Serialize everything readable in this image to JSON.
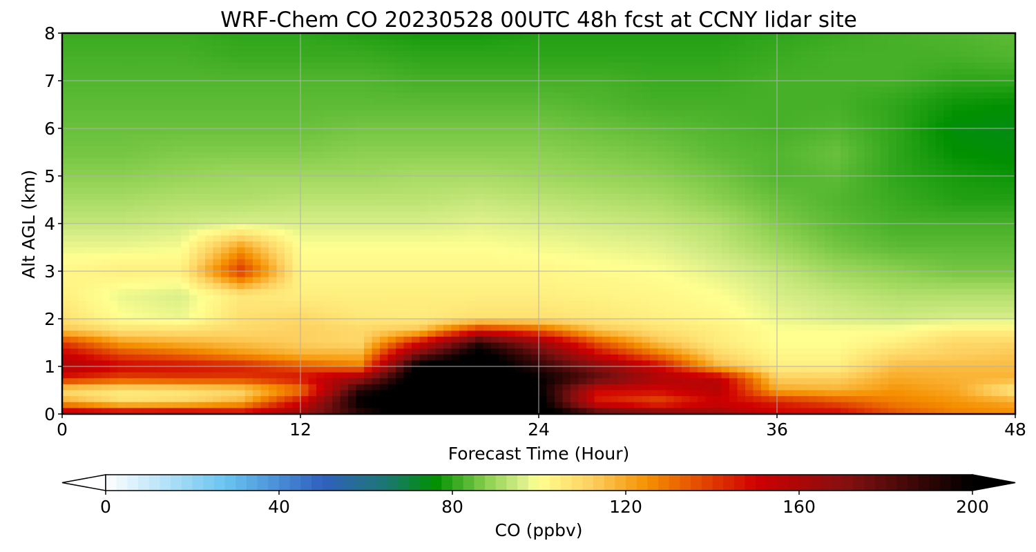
{
  "chart_data": {
    "type": "heatmap",
    "title": "WRF-Chem CO  20230528 00UTC 48h fcst at CCNY lidar site",
    "xlabel": "Forecast Time (Hour)",
    "ylabel": "Alt AGL (km)",
    "xlim": [
      0,
      48
    ],
    "ylim": [
      0,
      8
    ],
    "xticks": [
      0,
      12,
      24,
      36,
      48
    ],
    "yticks": [
      0,
      1,
      2,
      3,
      4,
      5,
      6,
      7,
      8
    ],
    "grid": true,
    "x_hours": [
      0,
      3,
      6,
      9,
      12,
      15,
      18,
      21,
      24,
      27,
      30,
      33,
      36,
      39,
      42,
      45,
      48
    ],
    "y_km": [
      0,
      0.25,
      0.5,
      0.75,
      1,
      1.25,
      1.5,
      1.75,
      2,
      2.5,
      3,
      3.5,
      4,
      4.5,
      5,
      5.5,
      6,
      6.5,
      7,
      7.5,
      8
    ],
    "values_ppbv": [
      [
        160,
        157,
        158,
        153,
        165,
        190,
        210,
        210,
        210,
        185,
        175,
        165,
        150,
        150,
        136,
        128,
        126
      ],
      [
        120,
        108,
        110,
        118,
        150,
        200,
        210,
        210,
        205,
        145,
        135,
        150,
        145,
        136,
        128,
        124,
        120
      ],
      [
        108,
        105,
        106,
        110,
        128,
        192,
        210,
        210,
        200,
        150,
        150,
        158,
        120,
        118,
        124,
        120,
        104
      ],
      [
        145,
        138,
        140,
        140,
        148,
        165,
        210,
        210,
        200,
        180,
        160,
        155,
        112,
        112,
        120,
        118,
        118
      ],
      [
        160,
        150,
        148,
        145,
        135,
        128,
        205,
        210,
        190,
        170,
        150,
        118,
        104,
        104,
        116,
        116,
        116
      ],
      [
        152,
        138,
        132,
        124,
        118,
        118,
        175,
        205,
        180,
        150,
        130,
        110,
        102,
        102,
        110,
        112,
        114
      ],
      [
        140,
        122,
        118,
        115,
        112,
        110,
        148,
        190,
        165,
        135,
        115,
        105,
        100,
        100,
        104,
        110,
        110
      ],
      [
        115,
        108,
        108,
        110,
        112,
        110,
        115,
        145,
        135,
        115,
        108,
        104,
        100,
        100,
        100,
        104,
        104
      ],
      [
        108,
        100,
        98,
        108,
        110,
        106,
        105,
        108,
        108,
        106,
        104,
        102,
        98,
        96,
        95,
        96,
        96
      ],
      [
        104,
        98,
        96,
        106,
        104,
        104,
        104,
        104,
        104,
        103,
        102,
        100,
        96,
        94,
        92,
        92,
        92
      ],
      [
        102,
        104,
        104,
        140,
        102,
        102,
        102,
        102,
        102,
        101,
        100,
        97,
        94,
        90,
        88,
        86,
        86
      ],
      [
        98,
        98,
        99,
        122,
        100,
        100,
        100,
        100,
        99,
        98,
        97,
        94,
        90,
        86,
        84,
        84,
        84
      ],
      [
        94,
        94,
        95,
        96,
        96,
        96,
        96,
        97,
        96,
        95,
        94,
        92,
        87,
        84,
        82,
        82,
        82
      ],
      [
        91,
        91,
        92,
        92,
        93,
        93,
        93,
        94,
        93,
        92,
        91,
        88,
        85,
        83,
        81,
        79,
        79
      ],
      [
        88,
        88,
        89,
        90,
        90,
        90,
        91,
        91,
        90,
        89,
        88,
        86,
        83,
        84,
        80,
        78,
        77
      ],
      [
        86,
        86,
        87,
        87,
        87,
        88,
        88,
        88,
        88,
        87,
        86,
        84,
        83,
        85,
        80,
        76,
        75
      ],
      [
        85,
        85,
        85,
        85,
        85,
        86,
        86,
        86,
        86,
        85,
        84,
        83,
        82,
        83,
        80,
        75,
        74
      ],
      [
        84,
        84,
        84,
        84,
        84,
        84,
        84,
        84,
        84,
        83,
        82,
        82,
        82,
        82,
        80,
        77,
        76
      ],
      [
        83,
        83,
        83,
        83,
        83,
        83,
        82,
        82,
        82,
        82,
        81,
        81,
        82,
        82,
        82,
        80,
        80
      ],
      [
        82,
        82,
        82,
        81,
        81,
        81,
        80,
        80,
        80,
        80,
        80,
        80,
        81,
        82,
        82,
        82,
        83
      ],
      [
        81,
        81,
        81,
        80,
        80,
        79,
        78,
        78,
        79,
        79,
        79,
        79,
        80,
        81,
        82,
        83,
        84
      ]
    ],
    "colorbar": {
      "label": "CO  (ppbv)",
      "ticks": [
        0,
        40,
        80,
        120,
        160,
        200
      ],
      "range": [
        0,
        200
      ],
      "extend": "both",
      "stops": [
        {
          "v": 0,
          "c": "#ffffff"
        },
        {
          "v": 28,
          "c": "#67c3f0"
        },
        {
          "v": 50,
          "c": "#3060c0"
        },
        {
          "v": 65,
          "c": "#1a7870"
        },
        {
          "v": 76,
          "c": "#009000"
        },
        {
          "v": 88,
          "c": "#8cd050"
        },
        {
          "v": 96,
          "c": "#d8ee88"
        },
        {
          "v": 100,
          "c": "#ffff90"
        },
        {
          "v": 112,
          "c": "#fdd060"
        },
        {
          "v": 125,
          "c": "#f59000"
        },
        {
          "v": 150,
          "c": "#d00000"
        },
        {
          "v": 172,
          "c": "#801010"
        },
        {
          "v": 200,
          "c": "#000000"
        }
      ],
      "under_color": "#ffffff",
      "over_color": "#000000"
    }
  }
}
